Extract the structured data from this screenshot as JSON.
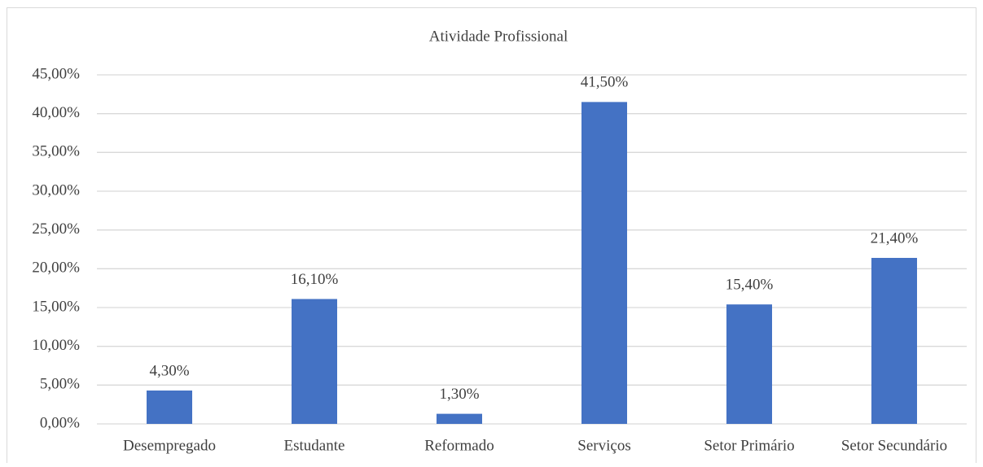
{
  "chart_data": {
    "type": "bar",
    "title": "Atividade Profissional",
    "categories": [
      "Desempregado",
      "Estudante",
      "Reformado",
      "Serviços",
      "Setor Primário",
      "Setor Secundário"
    ],
    "values": [
      4.3,
      16.1,
      1.3,
      41.5,
      15.4,
      21.4
    ],
    "value_labels": [
      "4,30%",
      "16,10%",
      "1,30%",
      "41,50%",
      "15,40%",
      "21,40%"
    ],
    "color": "#4472c4",
    "ylim": [
      0,
      45
    ],
    "yticks": [
      {
        "value": 0,
        "label": "0,00%"
      },
      {
        "value": 5,
        "label": "5,00%"
      },
      {
        "value": 10,
        "label": "10,00%"
      },
      {
        "value": 15,
        "label": "15,00%"
      },
      {
        "value": 20,
        "label": "20,00%"
      },
      {
        "value": 25,
        "label": "25,00%"
      },
      {
        "value": 30,
        "label": "30,00%"
      },
      {
        "value": 35,
        "label": "35,00%"
      },
      {
        "value": 40,
        "label": "40,00%"
      },
      {
        "value": 45,
        "label": "45,00%"
      }
    ],
    "grid": true
  }
}
